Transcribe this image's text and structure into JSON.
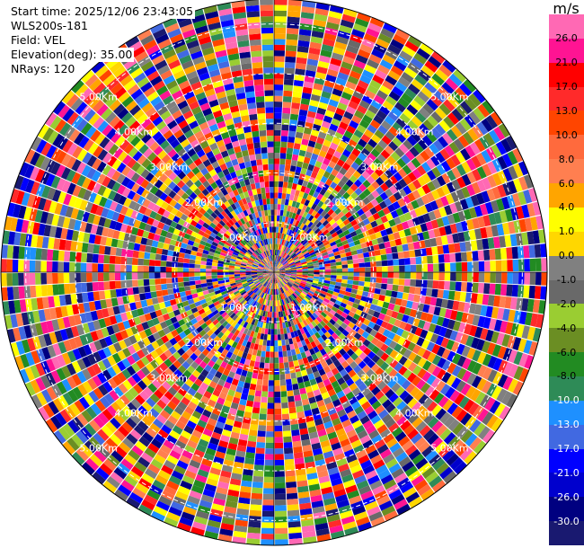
{
  "header": {
    "start_time": "Start time: 2025/12/06 23:43:05",
    "station": "WLS200s-181",
    "field": "Field: VEL",
    "elevation": "Elevation(deg): 35.00",
    "nrays": "NRays: 120"
  },
  "colorbar": {
    "unit": "m/s",
    "tick_labels": [
      "26.0",
      "21.0",
      "17.0",
      "13.0",
      "10.0",
      "8.0",
      "6.0",
      "4.0",
      "1.0",
      "0.0",
      "-1.0",
      "-2.0",
      "-4.0",
      "-6.0",
      "-8.0",
      "-10.0",
      "-13.0",
      "-17.0",
      "-21.0",
      "-26.0",
      "-30.0"
    ],
    "bands_top_to_bottom": [
      {
        "lo": 26,
        "hi": 30,
        "color": "#ff69b4"
      },
      {
        "lo": 21,
        "hi": 26,
        "color": "#ff1493"
      },
      {
        "lo": 17,
        "hi": 21,
        "color": "#ff0000"
      },
      {
        "lo": 13,
        "hi": 17,
        "color": "#ff2a2a"
      },
      {
        "lo": 10,
        "hi": 13,
        "color": "#ff4500"
      },
      {
        "lo": 8,
        "hi": 10,
        "color": "#ff6a3d"
      },
      {
        "lo": 6,
        "hi": 8,
        "color": "#ff7f50"
      },
      {
        "lo": 4,
        "hi": 6,
        "color": "#ffa500"
      },
      {
        "lo": 1,
        "hi": 4,
        "color": "#ffff00"
      },
      {
        "lo": 0,
        "hi": 1,
        "color": "#ffd700"
      },
      {
        "lo": -1,
        "hi": 0,
        "color": "#808080"
      },
      {
        "lo": -2,
        "hi": -1,
        "color": "#696969"
      },
      {
        "lo": -4,
        "hi": -2,
        "color": "#9acd32"
      },
      {
        "lo": -6,
        "hi": -4,
        "color": "#6b8e23"
      },
      {
        "lo": -8,
        "hi": -6,
        "color": "#228b22"
      },
      {
        "lo": -10,
        "hi": -8,
        "color": "#2e8b57"
      },
      {
        "lo": -13,
        "hi": -10,
        "color": "#1e90ff"
      },
      {
        "lo": -17,
        "hi": -13,
        "color": "#4169e1"
      },
      {
        "lo": -21,
        "hi": -17,
        "color": "#0000ff"
      },
      {
        "lo": -26,
        "hi": -21,
        "color": "#0000cd"
      },
      {
        "lo": -30,
        "hi": -26,
        "color": "#000080"
      },
      {
        "lo": -30,
        "hi": -30,
        "color": "#191970"
      }
    ]
  },
  "chart_data": {
    "type": "heatmap",
    "projection": "polar PPI",
    "field": "VEL",
    "units": "m/s",
    "nrays": 120,
    "range_max_km": 5.5,
    "range_ring_labels": [
      "1.00Km",
      "2.00Km",
      "3.00Km",
      "4.00Km",
      "5.00Km"
    ],
    "ring_label_azimuths_deg": [
      45,
      135,
      225,
      315
    ],
    "range_ring_interval_km": 1,
    "value_range": [
      -30,
      30
    ],
    "note": "Velocity field appears spatially noisy; per-gate values not individually legible."
  }
}
